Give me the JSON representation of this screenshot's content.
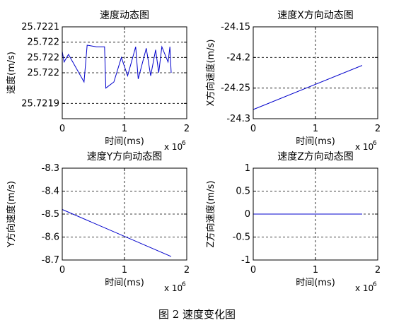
{
  "figure_caption": "图 2  速度变化图",
  "chart_data": [
    {
      "type": "line",
      "title": "速度动态图",
      "xlabel": "时间(ms)",
      "ylabel": "速度(m/s)",
      "x_multiplier": "x 10",
      "x_multiplier_exp": "6",
      "xlim": [
        0,
        2
      ],
      "ylim": [
        25.72185,
        25.72215
      ],
      "xticks": [
        0,
        1,
        2
      ],
      "xtick_labels": [
        "0",
        "1",
        "2"
      ],
      "yticks": [
        25.7219,
        25.722,
        25.72205,
        25.7221,
        25.72215
      ],
      "ytick_labels": [
        "25.7219",
        "25.722",
        "25.722",
        "25.722",
        "25.7221"
      ],
      "grid": true,
      "color": "#0000cc",
      "series": [
        {
          "x": [
            0,
            0.03,
            0.1,
            0.35,
            0.4,
            0.55,
            0.68,
            0.7,
            0.83,
            0.95,
            1.05,
            1.18,
            1.22,
            1.35,
            1.42,
            1.5,
            1.55,
            1.6,
            1.7,
            1.73,
            1.75
          ],
          "y": [
            25.72207,
            25.722035,
            25.72206,
            25.72197,
            25.72209,
            25.722085,
            25.722085,
            25.72195,
            25.72197,
            25.72205,
            25.72199,
            25.722085,
            25.72198,
            25.72208,
            25.72199,
            25.722075,
            25.722,
            25.722085,
            25.722035,
            25.722085,
            25.722
          ]
        }
      ]
    },
    {
      "type": "line",
      "title": "速度X方向动态图",
      "xlabel": "时间(ms)",
      "ylabel": "X方向速度(m/s)",
      "x_multiplier": "x 10",
      "x_multiplier_exp": "6",
      "xlim": [
        0,
        2
      ],
      "ylim": [
        -24.3,
        -24.15
      ],
      "xticks": [
        0,
        1,
        2
      ],
      "xtick_labels": [
        "0",
        "1",
        "2"
      ],
      "yticks": [
        -24.3,
        -24.25,
        -24.2,
        -24.15
      ],
      "ytick_labels": [
        "-24.3",
        "-24.25",
        "-24.2",
        "-24.15"
      ],
      "grid": true,
      "color": "#0000cc",
      "series": [
        {
          "x": [
            0,
            1.75
          ],
          "y": [
            -24.285,
            -24.213
          ]
        }
      ]
    },
    {
      "type": "line",
      "title": "速度Y方向动态图",
      "xlabel": "时间(ms)",
      "ylabel": "Y方向速度(m/s)",
      "x_multiplier": "x 10",
      "x_multiplier_exp": "6",
      "xlim": [
        0,
        2
      ],
      "ylim": [
        -8.7,
        -8.3
      ],
      "xticks": [
        0,
        1,
        2
      ],
      "xtick_labels": [
        "0",
        "1",
        "2"
      ],
      "yticks": [
        -8.7,
        -8.6,
        -8.5,
        -8.4,
        -8.3
      ],
      "ytick_labels": [
        "-8.7",
        "-8.6",
        "-8.5",
        "-8.4",
        "-8.3"
      ],
      "grid": true,
      "color": "#0000cc",
      "series": [
        {
          "x": [
            0,
            1.75
          ],
          "y": [
            -8.48,
            -8.685
          ]
        }
      ]
    },
    {
      "type": "line",
      "title": "速度Z方向动态图",
      "xlabel": "时间(ms)",
      "ylabel": "Z方向速度(m/s)",
      "x_multiplier": "x 10",
      "x_multiplier_exp": "6",
      "xlim": [
        0,
        2
      ],
      "ylim": [
        -1,
        1
      ],
      "xticks": [
        0,
        1,
        2
      ],
      "xtick_labels": [
        "0",
        "1",
        "2"
      ],
      "yticks": [
        -1,
        -0.5,
        0,
        0.5,
        1
      ],
      "ytick_labels": [
        "-1",
        "-0.5",
        "0",
        "0.5",
        "1"
      ],
      "grid": true,
      "color": "#0000cc",
      "series": [
        {
          "x": [
            0,
            1.75
          ],
          "y": [
            0,
            0
          ]
        }
      ]
    }
  ]
}
